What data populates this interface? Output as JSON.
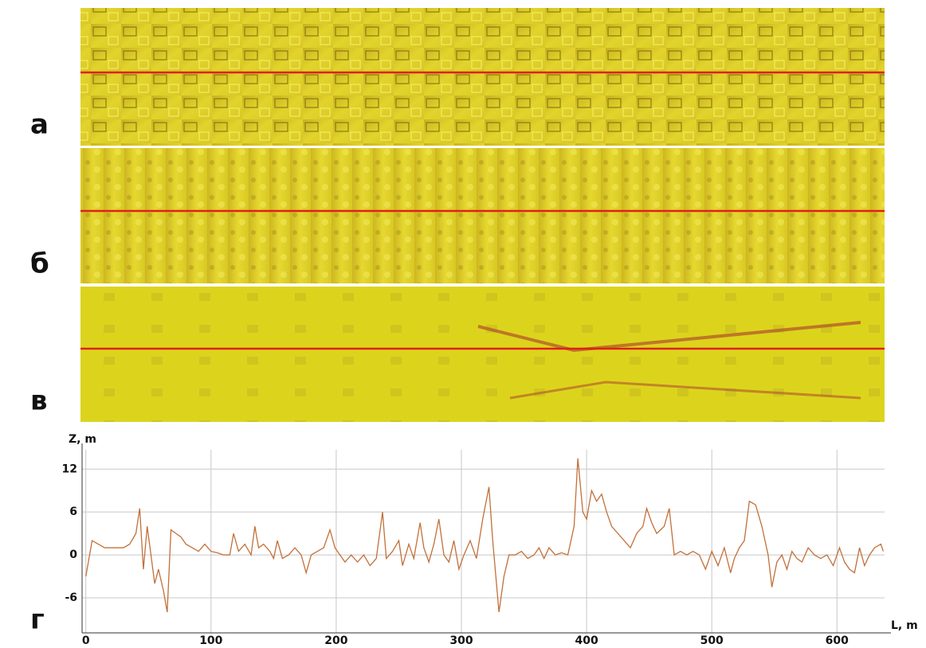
{
  "panels": [
    {
      "label": "а"
    },
    {
      "label": "б"
    },
    {
      "label": "в"
    }
  ],
  "chart_data": {
    "type": "line",
    "panel_label": "г",
    "y_label": "Z, m",
    "x_label": "L, m",
    "xlim": [
      -3,
      638
    ],
    "ylim": [
      -10.9,
      14.7
    ],
    "xticks": [
      0,
      100,
      200,
      300,
      400,
      500,
      600
    ],
    "yticks": [
      -6,
      0,
      6,
      12
    ],
    "grid": true,
    "series": [
      {
        "color": "#c2703a",
        "x": [
          0,
          5,
          10,
          15,
          20,
          25,
          30,
          35,
          40,
          43,
          46,
          49,
          52,
          55,
          58,
          62,
          65,
          68,
          72,
          76,
          80,
          85,
          90,
          95,
          100,
          105,
          110,
          115,
          118,
          122,
          127,
          132,
          135,
          138,
          142,
          147,
          150,
          153,
          157,
          162,
          167,
          172,
          176,
          180,
          185,
          190,
          195,
          199,
          203,
          207,
          212,
          217,
          222,
          227,
          232,
          237,
          240,
          245,
          250,
          253,
          258,
          262,
          267,
          270,
          274,
          278,
          282,
          286,
          290,
          294,
          298,
          302,
          307,
          312,
          317,
          322,
          325,
          330,
          334,
          338,
          343,
          348,
          353,
          358,
          362,
          366,
          370,
          375,
          380,
          385,
          390,
          393,
          397,
          400,
          404,
          408,
          412,
          416,
          420,
          425,
          430,
          435,
          440,
          445,
          448,
          452,
          456,
          462,
          466,
          470,
          475,
          480,
          485,
          490,
          495,
          500,
          505,
          510,
          515,
          518,
          522,
          526,
          530,
          535,
          540,
          545,
          548,
          552,
          556,
          560,
          564,
          568,
          572,
          577,
          582,
          587,
          592,
          597,
          602,
          606,
          610,
          614,
          618,
          622,
          626,
          630,
          635,
          637
        ],
        "values": [
          -3,
          2,
          1.5,
          1,
          1,
          1,
          1,
          1.5,
          3,
          6.5,
          -2,
          4,
          0,
          -4,
          -2,
          -5,
          -8,
          3.5,
          3,
          2.5,
          1.5,
          1,
          0.5,
          1.5,
          0.5,
          0.3,
          0,
          0,
          3,
          0.5,
          1.5,
          0,
          4,
          1,
          1.5,
          0.5,
          -0.5,
          2,
          -0.5,
          0,
          1,
          0,
          -2.5,
          0,
          0.5,
          1,
          3.5,
          1,
          0,
          -1,
          0,
          -1,
          0,
          -1.5,
          -0.5,
          6,
          -0.5,
          0.5,
          2,
          -1.5,
          1.5,
          -0.5,
          4.5,
          1,
          -1,
          1.5,
          5,
          0,
          -1,
          2,
          -2,
          0,
          2,
          -0.5,
          5,
          9.5,
          2,
          -8,
          -3,
          0,
          0,
          0.5,
          -0.5,
          0,
          1,
          -0.5,
          1,
          0,
          0.3,
          0,
          4,
          13.5,
          6,
          5,
          9,
          7.5,
          8.5,
          6,
          4,
          3,
          2,
          1,
          3,
          4,
          6.5,
          4.5,
          3,
          4,
          6.5,
          0,
          0.5,
          0,
          0.5,
          0,
          -2,
          0.5,
          -1.5,
          1,
          -2.5,
          -0.5,
          1,
          2,
          7.5,
          7,
          4,
          0,
          -4.5,
          -1,
          0,
          -2,
          0.5,
          -0.5,
          -1,
          1,
          0,
          -0.5,
          0,
          -1.5,
          1,
          -1,
          -2,
          -2.5,
          1,
          -1.5,
          0,
          1,
          1.5,
          0.5
        ]
      }
    ]
  }
}
